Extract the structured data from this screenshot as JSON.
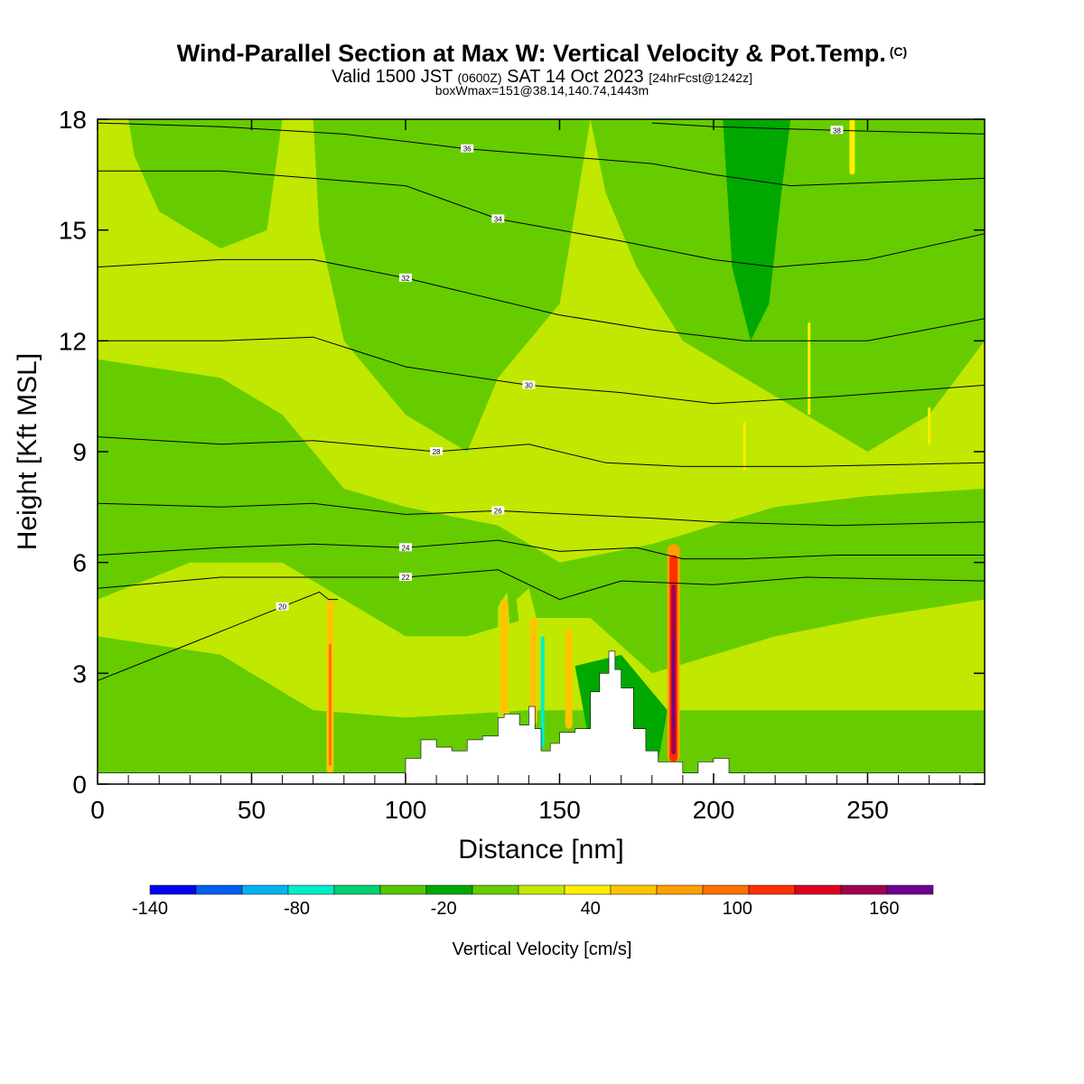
{
  "header": {
    "title": "Wind-Parallel Section at Max W: Vertical Velocity & Pot.Temp.",
    "copyright": "(C)",
    "subtitle_a": "Valid 1500 JST",
    "subtitle_b": "(0600Z)",
    "subtitle_c": "SAT 14 Oct 2023",
    "subtitle_d": "[24hrFcst@1242z]",
    "subtitle3": "boxWmax=151@38.14,140.74,1443m"
  },
  "chart_data": {
    "type": "heatmap",
    "xlabel": "Distance [nm]",
    "ylabel": "Height [Kft MSL]",
    "xlim": [
      0,
      288
    ],
    "ylim": [
      0,
      18
    ],
    "x_ticks": [
      0,
      50,
      100,
      150,
      200,
      250
    ],
    "y_ticks": [
      0,
      3,
      6,
      9,
      12,
      15,
      18
    ],
    "colorbar": {
      "label": "Vertical Velocity [cm/s]",
      "ticks": [
        -140,
        -80,
        -20,
        40,
        100,
        160
      ],
      "min": -140,
      "max": 180,
      "step": 20,
      "colors": [
        "#0000ee",
        "#0060ee",
        "#00b4f0",
        "#00eec8",
        "#00d070",
        "#55c800",
        "#00a800",
        "#66cc00",
        "#c0e800",
        "#ffee00",
        "#ffc400",
        "#ffa000",
        "#ff7000",
        "#ff3000",
        "#e00020",
        "#a00050",
        "#700090"
      ]
    },
    "theta_contours": [
      {
        "label": "20",
        "x": [
          0,
          30,
          60,
          72,
          75,
          78
        ],
        "y": [
          2.8,
          3.8,
          4.8,
          5.2,
          5.0,
          5.0
        ]
      },
      {
        "label": "22",
        "x": [
          0,
          40,
          70,
          80,
          100,
          130,
          150,
          170,
          200,
          230,
          288
        ],
        "y": [
          5.3,
          5.6,
          5.6,
          5.6,
          5.6,
          5.8,
          5.0,
          5.5,
          5.4,
          5.6,
          5.5
        ]
      },
      {
        "label": "24",
        "x": [
          0,
          40,
          70,
          100,
          130,
          150,
          175,
          190,
          210,
          240,
          288
        ],
        "y": [
          6.2,
          6.4,
          6.5,
          6.4,
          6.6,
          6.3,
          6.4,
          6.1,
          6.1,
          6.2,
          6.2
        ]
      },
      {
        "label": "26",
        "x": [
          0,
          40,
          70,
          100,
          130,
          155,
          180,
          200,
          240,
          288
        ],
        "y": [
          7.6,
          7.5,
          7.6,
          7.3,
          7.4,
          7.3,
          7.2,
          7.1,
          7.0,
          7.1
        ]
      },
      {
        "label": "28",
        "x": [
          0,
          40,
          70,
          110,
          140,
          165,
          190,
          230,
          288
        ],
        "y": [
          9.4,
          9.2,
          9.3,
          9.0,
          9.2,
          8.7,
          8.6,
          8.6,
          8.7
        ]
      },
      {
        "label": "30",
        "x": [
          0,
          40,
          70,
          100,
          140,
          170,
          200,
          240,
          288
        ],
        "y": [
          12.0,
          12.0,
          12.1,
          11.3,
          10.8,
          10.6,
          10.3,
          10.5,
          10.8
        ]
      },
      {
        "label": "32",
        "x": [
          0,
          40,
          70,
          100,
          150,
          180,
          210,
          250,
          288
        ],
        "y": [
          14.0,
          14.2,
          14.2,
          13.7,
          12.7,
          12.3,
          12.0,
          12.0,
          12.6
        ]
      },
      {
        "label": "34",
        "x": [
          0,
          40,
          70,
          100,
          130,
          170,
          200,
          220,
          250,
          288
        ],
        "y": [
          16.6,
          16.6,
          16.4,
          16.2,
          15.3,
          14.7,
          14.2,
          14.0,
          14.2,
          14.9
        ]
      },
      {
        "label": "36",
        "x": [
          0,
          40,
          80,
          120,
          150,
          180,
          200,
          225,
          288
        ],
        "y": [
          17.9,
          17.8,
          17.6,
          17.2,
          17.0,
          16.8,
          16.5,
          16.2,
          16.4
        ]
      },
      {
        "label": "38",
        "x": [
          180,
          200,
          240,
          288
        ],
        "y": [
          17.9,
          17.8,
          17.7,
          17.6
        ]
      }
    ],
    "terrain": {
      "x": [
        0,
        97,
        100,
        105,
        110,
        115,
        120,
        125,
        130,
        132,
        137,
        140,
        142,
        144,
        147,
        150,
        155,
        160,
        163,
        166,
        168,
        170,
        174,
        178,
        182,
        186,
        190,
        195,
        200,
        205,
        210,
        288
      ],
      "y": [
        0.3,
        0.3,
        0.7,
        1.2,
        1.0,
        0.9,
        1.2,
        1.3,
        1.8,
        1.9,
        1.6,
        2.1,
        1.5,
        0.9,
        1.1,
        1.4,
        1.5,
        2.5,
        3.0,
        3.6,
        3.1,
        2.6,
        1.5,
        0.9,
        0.6,
        0.6,
        0.3,
        0.6,
        0.7,
        0.3,
        0.3,
        0.3
      ]
    }
  }
}
